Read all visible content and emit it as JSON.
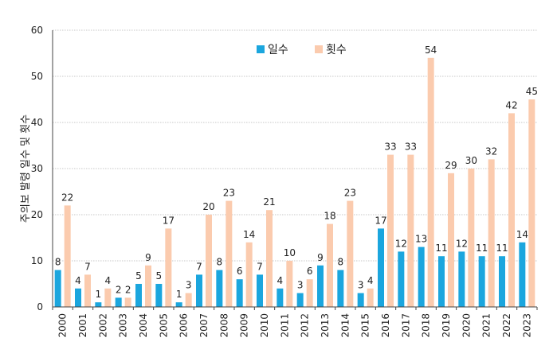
{
  "chart_data": {
    "type": "bar",
    "categories": [
      "2000",
      "2001",
      "2002",
      "2003",
      "2004",
      "2005",
      "2006",
      "2007",
      "2008",
      "2009",
      "2010",
      "2011",
      "2012",
      "2013",
      "2014",
      "2015",
      "2016",
      "2017",
      "2018",
      "2019",
      "2020",
      "2021",
      "2022",
      "2023"
    ],
    "series": [
      {
        "name": "일수",
        "color": "#1BA6DE",
        "values": [
          8,
          4,
          1,
          2,
          5,
          5,
          1,
          7,
          8,
          6,
          7,
          4,
          3,
          9,
          8,
          3,
          17,
          12,
          13,
          11,
          12,
          11,
          11,
          14
        ]
      },
      {
        "name": "횟수",
        "color": "#FBCBAE",
        "values": [
          22,
          7,
          4,
          2,
          9,
          17,
          3,
          20,
          23,
          14,
          21,
          10,
          6,
          18,
          23,
          4,
          33,
          33,
          54,
          29,
          30,
          32,
          42,
          45
        ]
      }
    ],
    "title": "",
    "xlabel": "",
    "ylabel": "주의보 발령 일수 및 횟수",
    "ylim": [
      0,
      60
    ],
    "yticks": [
      0,
      10,
      20,
      30,
      40,
      50,
      60
    ],
    "grid": true,
    "legend_position": "top-center"
  }
}
